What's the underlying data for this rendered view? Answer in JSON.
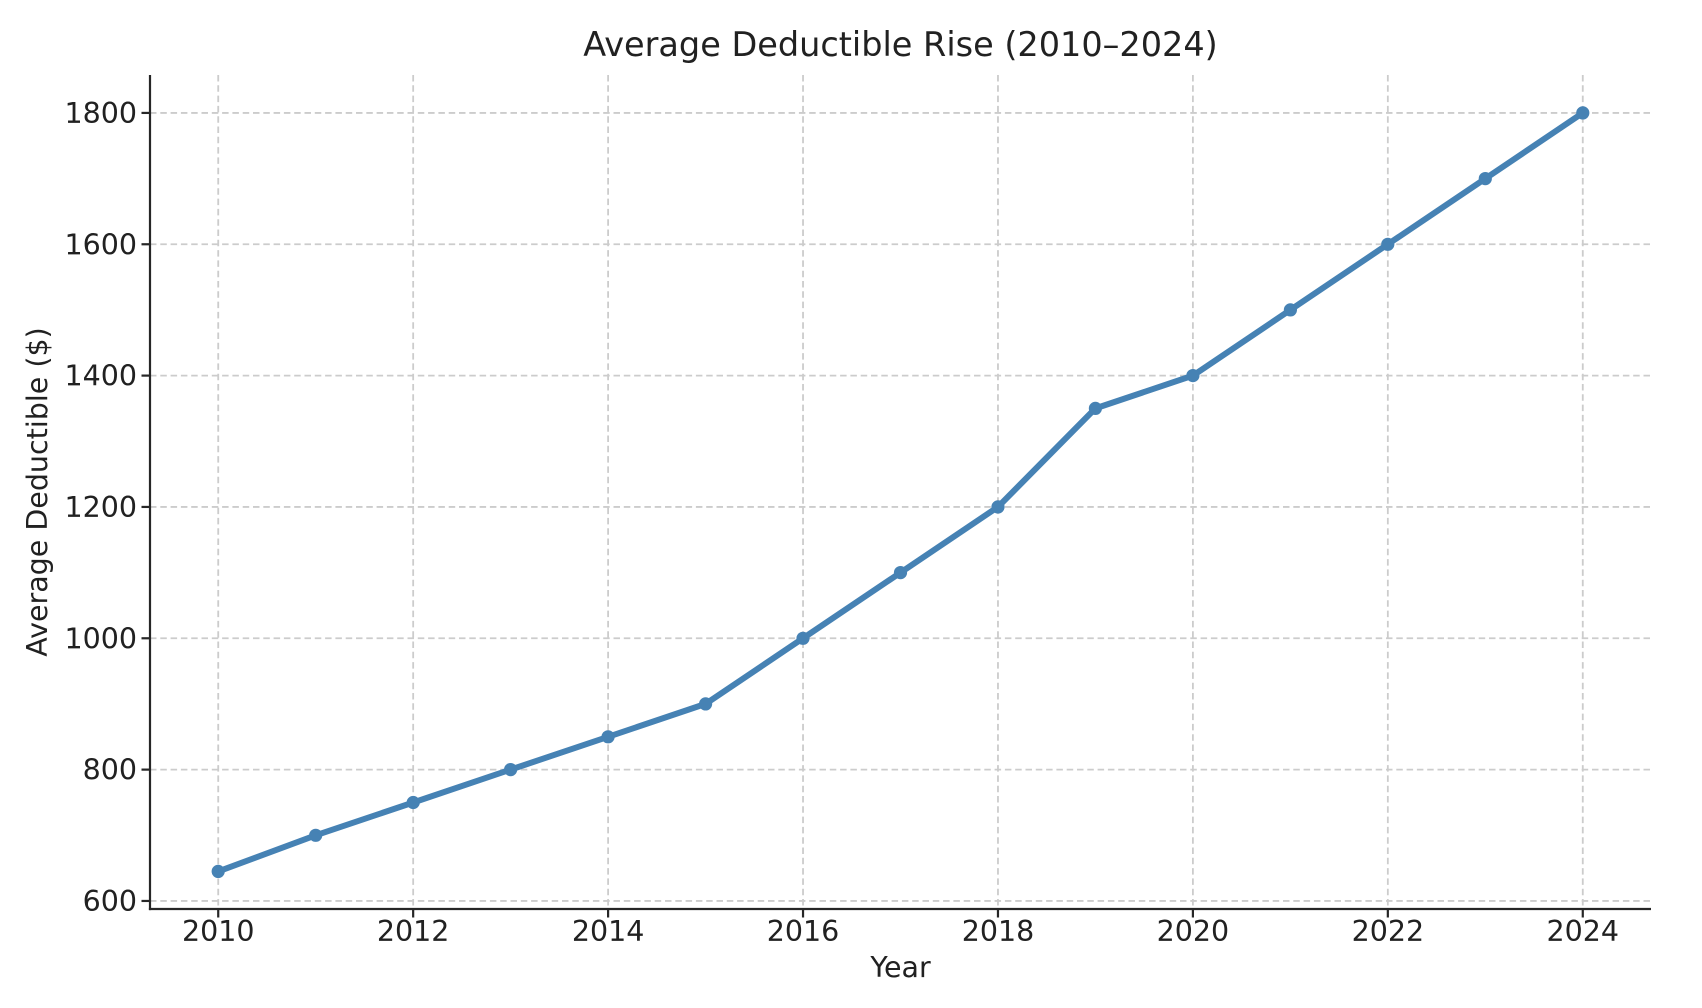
{
  "chart_data": {
    "type": "line",
    "title": "Average Deductible Rise (2010–2024)",
    "xlabel": "Year",
    "ylabel": "Average Deductible ($)",
    "x": [
      2010,
      2011,
      2012,
      2013,
      2014,
      2015,
      2016,
      2017,
      2018,
      2019,
      2020,
      2021,
      2022,
      2023,
      2024
    ],
    "series": [
      {
        "name": "Average Deductible",
        "values": [
          645,
          700,
          750,
          800,
          850,
          900,
          1000,
          1100,
          1200,
          1350,
          1400,
          1500,
          1600,
          1700,
          1800
        ]
      }
    ],
    "xticks": [
      2010,
      2012,
      2014,
      2016,
      2018,
      2020,
      2022,
      2024
    ],
    "yticks": [
      600,
      800,
      1000,
      1200,
      1400,
      1600,
      1800
    ],
    "xlim": [
      2009.3,
      2024.7
    ],
    "ylim": [
      587.75,
      1857.75
    ],
    "grid": true,
    "grid_style": "dashed",
    "legend": "none",
    "marker": "circle",
    "colors": {
      "line": "#4682B4",
      "marker": "#4682B4",
      "grid": "#cccccc",
      "spine": "#262626",
      "text": "#212121",
      "background": "#ffffff"
    }
  }
}
